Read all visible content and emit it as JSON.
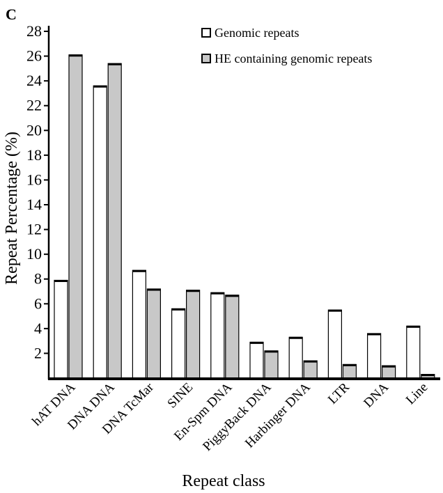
{
  "panel_label": "C",
  "colors": {
    "genomic": "#ffffff",
    "he": "#c8c8c8",
    "stroke": "#000000"
  },
  "chart_data": {
    "type": "bar",
    "xlabel": "Repeat class",
    "ylabel": "Repeat Percentage (%)",
    "ylim": [
      0,
      28
    ],
    "yticks": [
      2,
      4,
      6,
      8,
      10,
      12,
      14,
      16,
      18,
      20,
      22,
      24,
      26,
      28
    ],
    "legend_position": "top-right",
    "categories": [
      "hAT DNA",
      "DNA DNA",
      "DNA TcMar",
      "SINE",
      "En-Spm DNA",
      "PiggyBack DNA",
      "Harbinger DNA",
      "LTR",
      "DNA",
      "Line"
    ],
    "series": [
      {
        "name": "Genomic repeats",
        "values": [
          7.9,
          23.6,
          8.7,
          5.6,
          6.9,
          2.9,
          3.3,
          5.5,
          3.6,
          4.2
        ]
      },
      {
        "name": "HE containing genomic repeats",
        "values": [
          26.1,
          25.4,
          7.2,
          7.1,
          6.7,
          2.2,
          1.4,
          1.1,
          1.0,
          0.3
        ]
      }
    ]
  }
}
